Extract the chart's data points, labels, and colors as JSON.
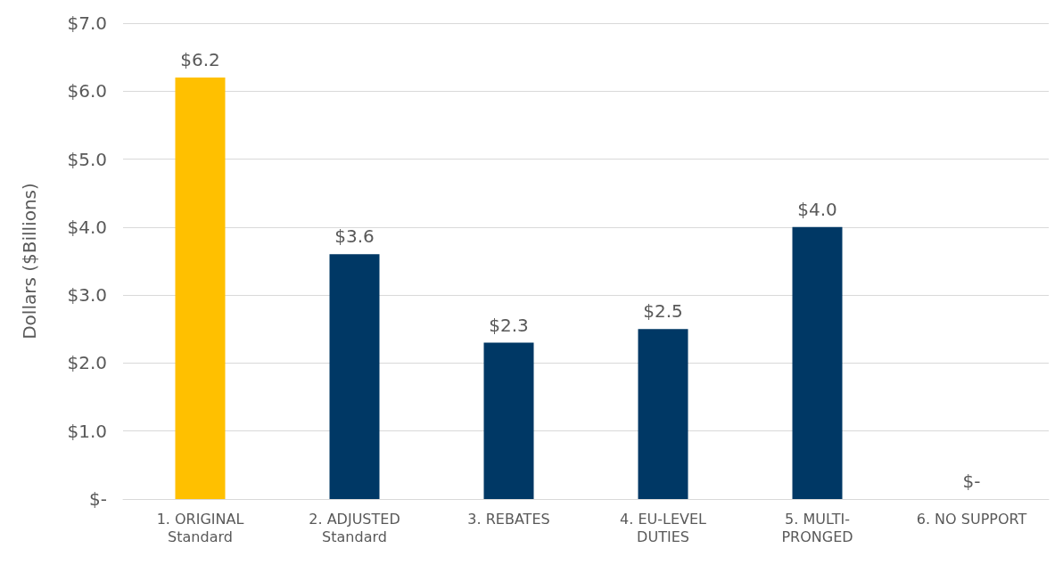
{
  "chart_data": {
    "type": "bar",
    "ylabel": "Dollars ($Billions)",
    "categories": [
      "1. ORIGINAL\nStandard",
      "2. ADJUSTED\nStandard",
      "3. REBATES",
      "4. EU-LEVEL\nDUTIES",
      "5. MULTI-\nPRONGED",
      "6. NO SUPPORT"
    ],
    "values": [
      6.2,
      3.6,
      2.3,
      2.5,
      4.0,
      0
    ],
    "colors": [
      "#ffc000",
      "#003865",
      "#003865",
      "#003865",
      "#003865",
      "#003865"
    ],
    "value_labels": [
      "$6.2",
      "$3.6",
      "$2.3",
      "$2.5",
      "$4.0",
      "$-"
    ],
    "ylim": [
      0,
      7
    ],
    "yticks": [
      {
        "value": 0,
        "label": "$-"
      },
      {
        "value": 1,
        "label": "$1.0"
      },
      {
        "value": 2,
        "label": "$2.0"
      },
      {
        "value": 3,
        "label": "$3.0"
      },
      {
        "value": 4,
        "label": "$4.0"
      },
      {
        "value": 5,
        "label": "$5.0"
      },
      {
        "value": 6,
        "label": "$6.0"
      },
      {
        "value": 7,
        "label": "$7.0"
      }
    ],
    "grid": "y"
  }
}
